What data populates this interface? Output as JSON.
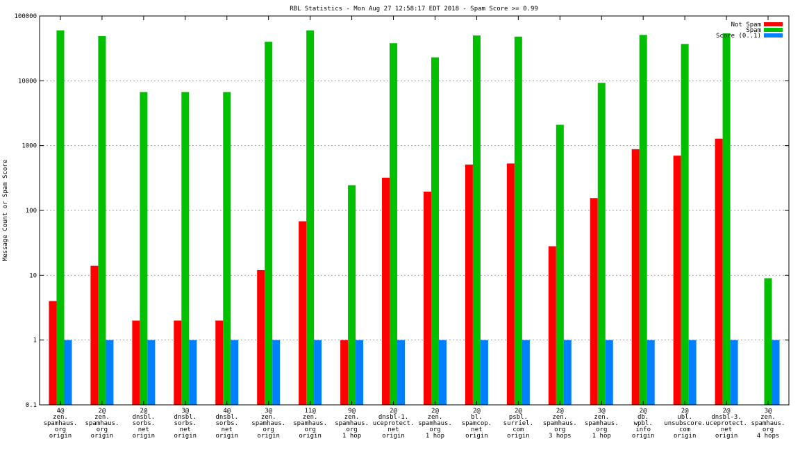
{
  "chart_data": {
    "type": "bar",
    "title": "RBL Statistics - Mon Aug 27 12:58:17 EDT 2018 - Spam Score >= 0.99",
    "ylabel": "Message Count or Spam Score",
    "xlabel": "",
    "yscale": "log",
    "ylim": [
      0.1,
      100000
    ],
    "yticks": [
      "0.1",
      "1",
      "10",
      "100",
      "1000",
      "10000",
      "100000"
    ],
    "grid": true,
    "legend_position": "top-right",
    "categories": [
      [
        "4@",
        "zen.",
        "spamhaus.",
        "org",
        "origin"
      ],
      [
        "2@",
        "zen.",
        "spamhaus.",
        "org",
        "origin"
      ],
      [
        "2@",
        "dnsbl.",
        "sorbs.",
        "net",
        "origin"
      ],
      [
        "3@",
        "dnsbl.",
        "sorbs.",
        "net",
        "origin"
      ],
      [
        "4@",
        "dnsbl.",
        "sorbs.",
        "net",
        "origin"
      ],
      [
        "3@",
        "zen.",
        "spamhaus.",
        "org",
        "origin"
      ],
      [
        "11@",
        "zen.",
        "spamhaus.",
        "org",
        "origin"
      ],
      [
        "9@",
        "zen.",
        "spamhaus.",
        "org",
        "1 hop"
      ],
      [
        "2@",
        "dnsbl-1.",
        "uceprotect.",
        "net",
        "origin"
      ],
      [
        "2@",
        "zen.",
        "spamhaus.",
        "org",
        "1 hop"
      ],
      [
        "2@",
        "bl.",
        "spamcop.",
        "net",
        "origin"
      ],
      [
        "2@",
        "psbl.",
        "surriel.",
        "com",
        "origin"
      ],
      [
        "2@",
        "zen.",
        "spamhaus.",
        "org",
        "3 hops"
      ],
      [
        "3@",
        "zen.",
        "spamhaus.",
        "org",
        "1 hop"
      ],
      [
        "2@",
        "db.",
        "wpbl.",
        "info",
        "origin"
      ],
      [
        "2@",
        "ubl.",
        "unsubscore.",
        "com",
        "origin"
      ],
      [
        "2@",
        "dnsbl-3.",
        "uceprotect.",
        "net",
        "origin"
      ],
      [
        "3@",
        "zen.",
        "spamhaus.",
        "org",
        "4 hops"
      ]
    ],
    "series": [
      {
        "name": "Not Spam",
        "color": "#ff0000",
        "values": [
          4,
          14,
          2,
          2,
          2,
          12,
          68,
          1,
          320,
          195,
          510,
          530,
          28,
          155,
          880,
          700,
          1280,
          null
        ]
      },
      {
        "name": "Spam",
        "color": "#00c000",
        "values": [
          60000,
          49000,
          6700,
          6700,
          6700,
          40000,
          60000,
          245,
          38000,
          23000,
          50000,
          48000,
          2100,
          9300,
          51000,
          37000,
          54000,
          9
        ]
      },
      {
        "name": "Score (0..1)",
        "color": "#0080ff",
        "values": [
          1,
          1,
          1,
          1,
          1,
          1,
          1,
          1,
          1,
          1,
          1,
          1,
          1,
          1,
          1,
          1,
          1,
          1
        ]
      }
    ]
  }
}
